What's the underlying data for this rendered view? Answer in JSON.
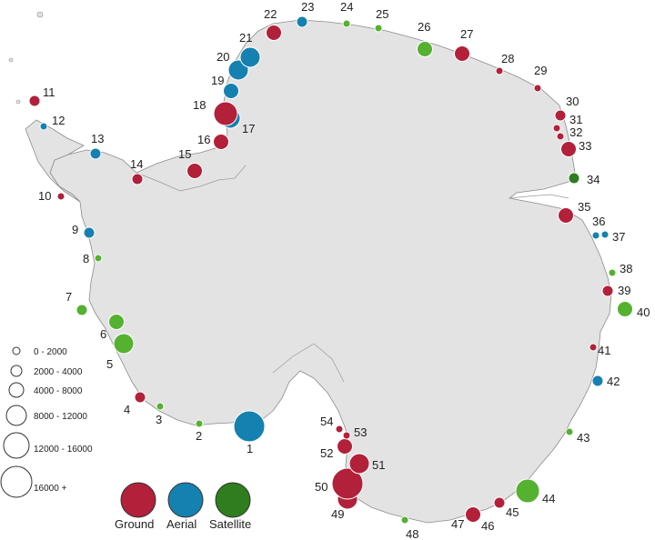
{
  "colors": {
    "ground": "#b2203a",
    "aerial": "#1581b0",
    "satellite": "#2e7d1f",
    "satellite_light": "#55b130",
    "land": "#e3e3e3",
    "coast": "#8c8c8c"
  },
  "size_legend": [
    "0 - 2000",
    "2000 - 4000",
    "4000 - 8000",
    "8000 - 12000",
    "12000 - 16000",
    "16000 +"
  ],
  "category_legend": [
    {
      "key": "ground",
      "label": "Ground"
    },
    {
      "key": "aerial",
      "label": "Aerial"
    },
    {
      "key": "satellite",
      "label": "Satellite"
    }
  ],
  "sites": [
    {
      "id": "1",
      "type": "aerial",
      "size_class": 6
    },
    {
      "id": "2",
      "type": "satellite_light",
      "size_class": 1
    },
    {
      "id": "3",
      "type": "satellite_light",
      "size_class": 1
    },
    {
      "id": "4",
      "type": "ground",
      "size_class": 2
    },
    {
      "id": "5",
      "type": "satellite_light",
      "size_class": 4
    },
    {
      "id": "6",
      "type": "satellite_light",
      "size_class": 3
    },
    {
      "id": "7",
      "type": "satellite_light",
      "size_class": 2
    },
    {
      "id": "8",
      "type": "satellite_light",
      "size_class": 1
    },
    {
      "id": "9",
      "type": "aerial",
      "size_class": 2
    },
    {
      "id": "10",
      "type": "ground",
      "size_class": 1
    },
    {
      "id": "11",
      "type": "ground",
      "size_class": 2
    },
    {
      "id": "12",
      "type": "aerial",
      "size_class": 1
    },
    {
      "id": "13",
      "type": "aerial",
      "size_class": 2
    },
    {
      "id": "14",
      "type": "ground",
      "size_class": 2
    },
    {
      "id": "15",
      "type": "ground",
      "size_class": 3
    },
    {
      "id": "16",
      "type": "ground",
      "size_class": 3
    },
    {
      "id": "17",
      "type": "aerial",
      "size_class": 4
    },
    {
      "id": "18",
      "type": "ground",
      "size_class": 5
    },
    {
      "id": "19",
      "type": "aerial",
      "size_class": 3
    },
    {
      "id": "20",
      "type": "aerial",
      "size_class": 4
    },
    {
      "id": "21",
      "type": "aerial",
      "size_class": 4
    },
    {
      "id": "22",
      "type": "ground",
      "size_class": 3
    },
    {
      "id": "23",
      "type": "aerial",
      "size_class": 2
    },
    {
      "id": "24",
      "type": "satellite_light",
      "size_class": 1
    },
    {
      "id": "25",
      "type": "satellite_light",
      "size_class": 1
    },
    {
      "id": "26",
      "type": "satellite_light",
      "size_class": 3
    },
    {
      "id": "27",
      "type": "ground",
      "size_class": 3
    },
    {
      "id": "28",
      "type": "ground",
      "size_class": 1
    },
    {
      "id": "29",
      "type": "ground",
      "size_class": 1
    },
    {
      "id": "30",
      "type": "ground",
      "size_class": 2
    },
    {
      "id": "31",
      "type": "ground",
      "size_class": 1
    },
    {
      "id": "32",
      "type": "ground",
      "size_class": 1
    },
    {
      "id": "33",
      "type": "ground",
      "size_class": 3
    },
    {
      "id": "34",
      "type": "satellite",
      "size_class": 2
    },
    {
      "id": "35",
      "type": "ground",
      "size_class": 3
    },
    {
      "id": "36",
      "type": "aerial",
      "size_class": 1
    },
    {
      "id": "37",
      "type": "aerial",
      "size_class": 1
    },
    {
      "id": "38",
      "type": "satellite_light",
      "size_class": 1
    },
    {
      "id": "39",
      "type": "ground",
      "size_class": 2
    },
    {
      "id": "40",
      "type": "satellite_light",
      "size_class": 3
    },
    {
      "id": "41",
      "type": "ground",
      "size_class": 1
    },
    {
      "id": "42",
      "type": "aerial",
      "size_class": 2
    },
    {
      "id": "43",
      "type": "satellite_light",
      "size_class": 1
    },
    {
      "id": "44",
      "type": "satellite_light",
      "size_class": 5
    },
    {
      "id": "45",
      "type": "ground",
      "size_class": 2
    },
    {
      "id": "46",
      "type": "ground",
      "size_class": 1
    },
    {
      "id": "47",
      "type": "ground",
      "size_class": 3
    },
    {
      "id": "48",
      "type": "satellite_light",
      "size_class": 1
    },
    {
      "id": "49",
      "type": "ground",
      "size_class": 4
    },
    {
      "id": "50",
      "type": "ground",
      "size_class": 6
    },
    {
      "id": "51",
      "type": "ground",
      "size_class": 4
    },
    {
      "id": "52",
      "type": "ground",
      "size_class": 3
    },
    {
      "id": "53",
      "type": "ground",
      "size_class": 1
    },
    {
      "id": "54",
      "type": "ground",
      "size_class": 1
    }
  ]
}
